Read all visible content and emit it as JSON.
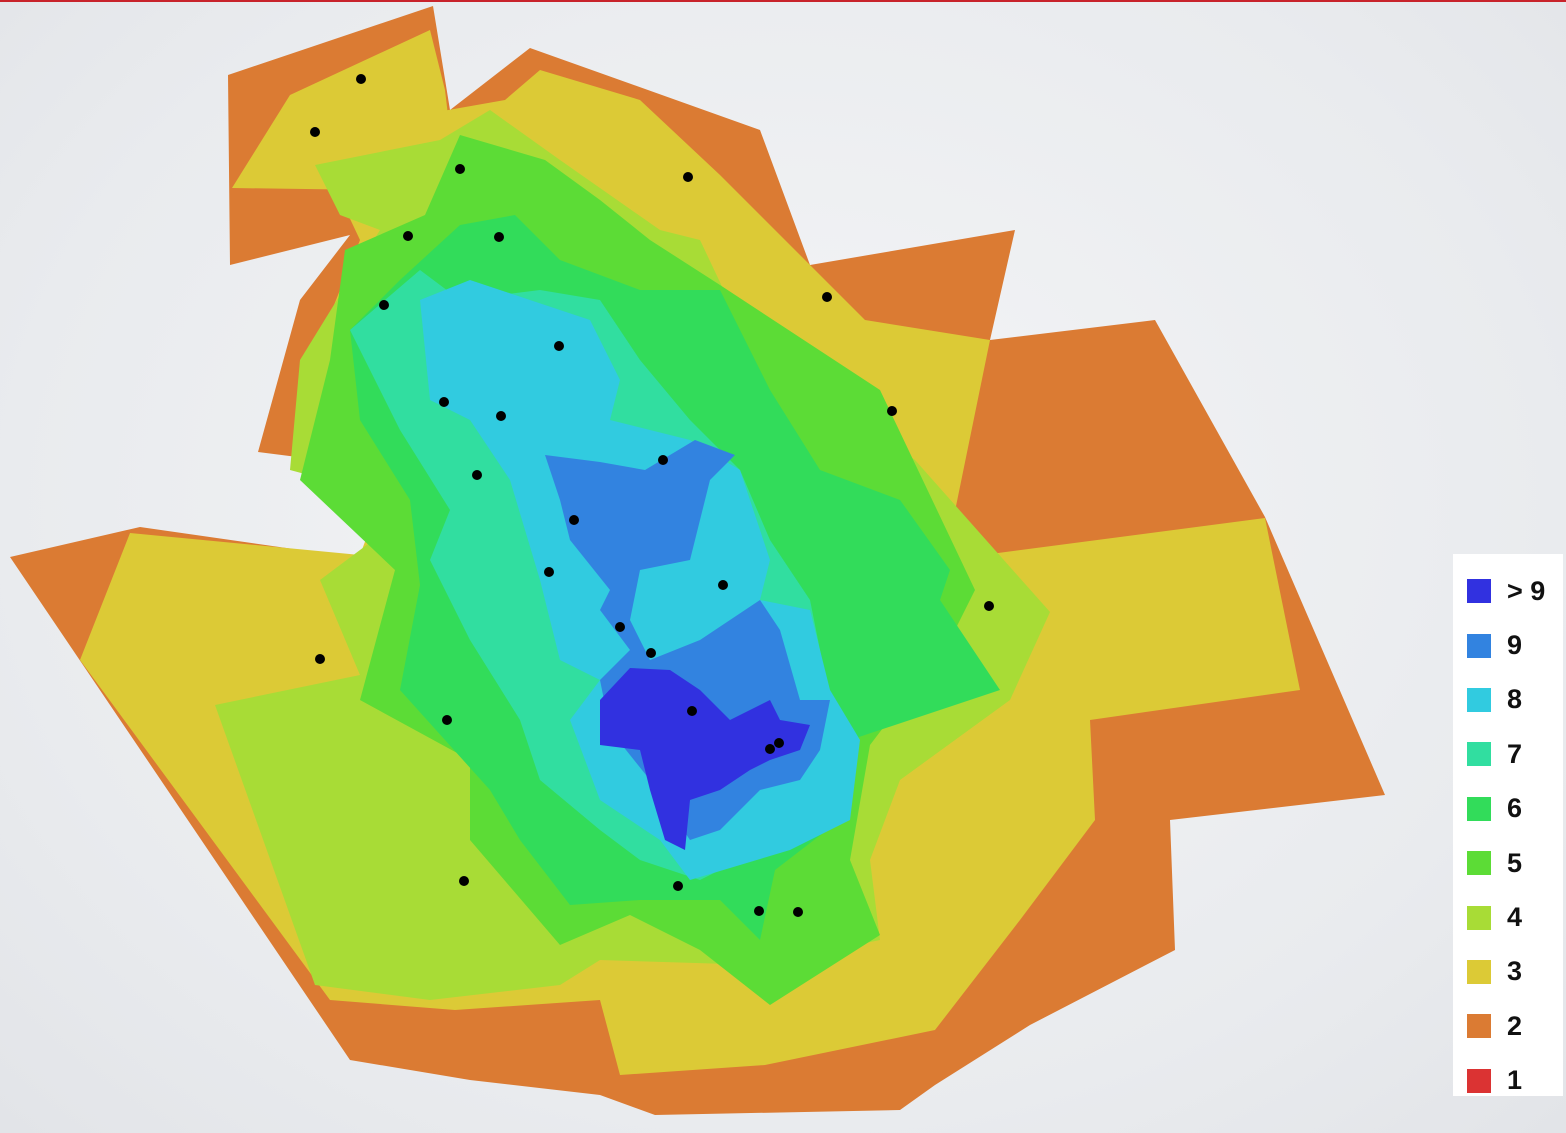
{
  "levels": [
    {
      "label": "> 9",
      "color": "#3131e0"
    },
    {
      "label": "9",
      "color": "#3283e0"
    },
    {
      "label": "8",
      "color": "#31cbe0"
    },
    {
      "label": "7",
      "color": "#31dea0"
    },
    {
      "label": "6",
      "color": "#32dc5a"
    },
    {
      "label": "5",
      "color": "#5cdc36"
    },
    {
      "label": "4",
      "color": "#a8dc36"
    },
    {
      "label": "3",
      "color": "#dcca36"
    },
    {
      "label": "2",
      "color": "#db7b33"
    },
    {
      "label": "1",
      "color": "#db3333"
    }
  ]
}
